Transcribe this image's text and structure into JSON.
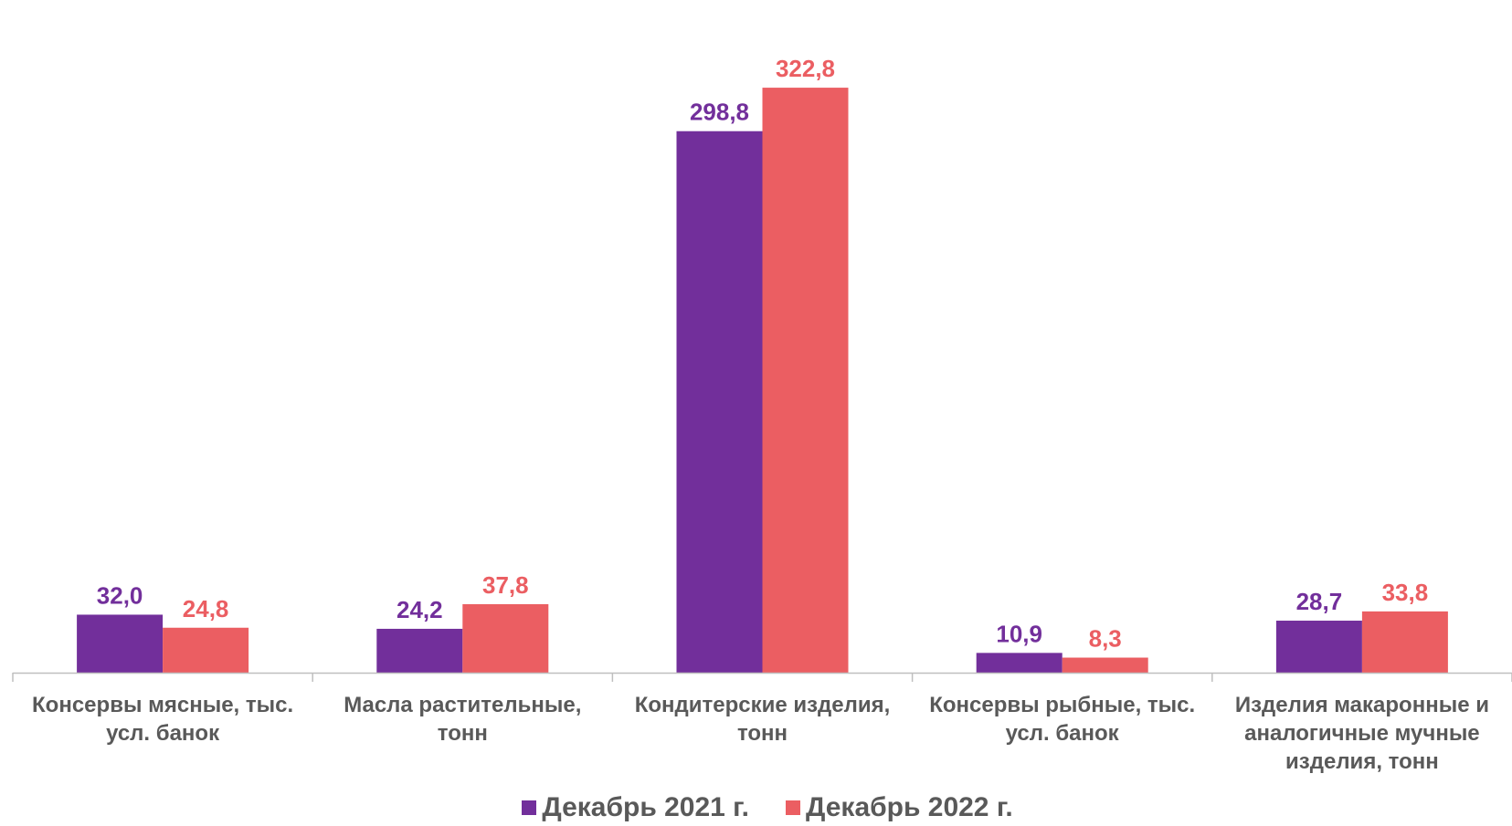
{
  "chart_data": {
    "type": "bar",
    "title": "",
    "xlabel": "",
    "ylabel": "",
    "ylim": [
      0,
      345
    ],
    "grid": false,
    "legend_position": "bottom",
    "categories": [
      [
        "Консервы мясные, тыс.",
        "усл. банок"
      ],
      [
        "Масла растительные,",
        "тонн"
      ],
      [
        "Кондитерские изделия,",
        "тонн"
      ],
      [
        "Консервы рыбные, тыс.",
        "усл. банок"
      ],
      [
        "Изделия макаронные и",
        "аналогичные мучные",
        "изделия, тонн"
      ]
    ],
    "series": [
      {
        "name": "Декабрь 2021 г.",
        "color": "#722F9B",
        "values": [
          32.0,
          24.2,
          298.8,
          10.9,
          28.7
        ],
        "labels": [
          "32,0",
          "24,2",
          "298,8",
          "10,9",
          "28,7"
        ]
      },
      {
        "name": "Декабрь 2022 г.",
        "color": "#EB5E62",
        "values": [
          24.8,
          37.8,
          322.8,
          8.3,
          33.8
        ],
        "labels": [
          "24,8",
          "37,8",
          "322,8",
          "8,3",
          "33,8"
        ]
      }
    ]
  },
  "legend": {
    "marker": "■",
    "items": [
      "Декабрь 2021 г.",
      "Декабрь 2022 г."
    ]
  },
  "colors": {
    "axis": "#BFBFBF",
    "category_text": "#595959",
    "legend_text": "#595959"
  }
}
